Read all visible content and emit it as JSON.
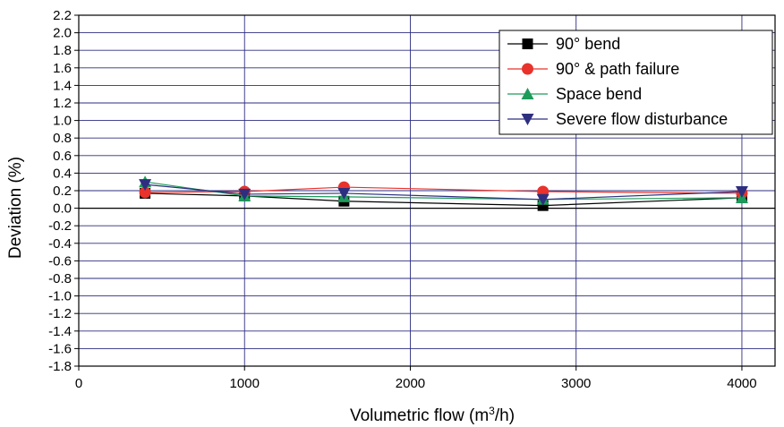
{
  "chart_data": {
    "type": "line",
    "xlabel_parts": [
      "Volumetric flow (m",
      "3",
      "/h)"
    ],
    "ylabel": "Deviation (%)",
    "xlim": [
      0,
      4200
    ],
    "ylim": [
      -1.8,
      2.2
    ],
    "x_ticks": [
      0,
      1000,
      2000,
      3000,
      4000
    ],
    "x_tick_labels": [
      "0",
      "1000",
      "2000",
      "3000",
      "4000"
    ],
    "y_ticks": [
      -1.8,
      -1.6,
      -1.4,
      -1.2,
      -1.0,
      -0.8,
      -0.6,
      -0.4,
      -0.2,
      0.0,
      0.2,
      0.4,
      0.6,
      0.8,
      1.0,
      1.2,
      1.4,
      1.6,
      1.8,
      2.0,
      2.2
    ],
    "y_tick_labels": [
      "-1.8",
      "-1.6",
      "-1.4",
      "-1.2",
      "-1.0",
      "-0.8",
      "-0.6",
      "-0.4",
      "-0.2",
      "0.0",
      "0.2",
      "0.4",
      "0.6",
      "0.8",
      "1.0",
      "1.2",
      "1.4",
      "1.6",
      "1.8",
      "2.0",
      "2.2"
    ],
    "grid": true,
    "zero_line": true,
    "legend_position": "top-right",
    "x": [
      400,
      1000,
      1600,
      2800,
      4000
    ],
    "series": [
      {
        "name": "90° bend",
        "marker": "square",
        "color": "#000000",
        "values": [
          0.17,
          0.14,
          0.08,
          0.03,
          0.12
        ]
      },
      {
        "name": "90° & path failure",
        "marker": "circle",
        "color": "#e8322b",
        "values": [
          0.18,
          0.19,
          0.24,
          0.19,
          0.17
        ]
      },
      {
        "name": "Space bend",
        "marker": "triangle-up",
        "color": "#1c9c5a",
        "values": [
          0.3,
          0.14,
          0.13,
          0.1,
          0.12
        ]
      },
      {
        "name": "Severe flow disturbance",
        "marker": "triangle-down",
        "color": "#2e2e80",
        "values": [
          0.27,
          0.16,
          0.17,
          0.1,
          0.19
        ]
      }
    ]
  }
}
